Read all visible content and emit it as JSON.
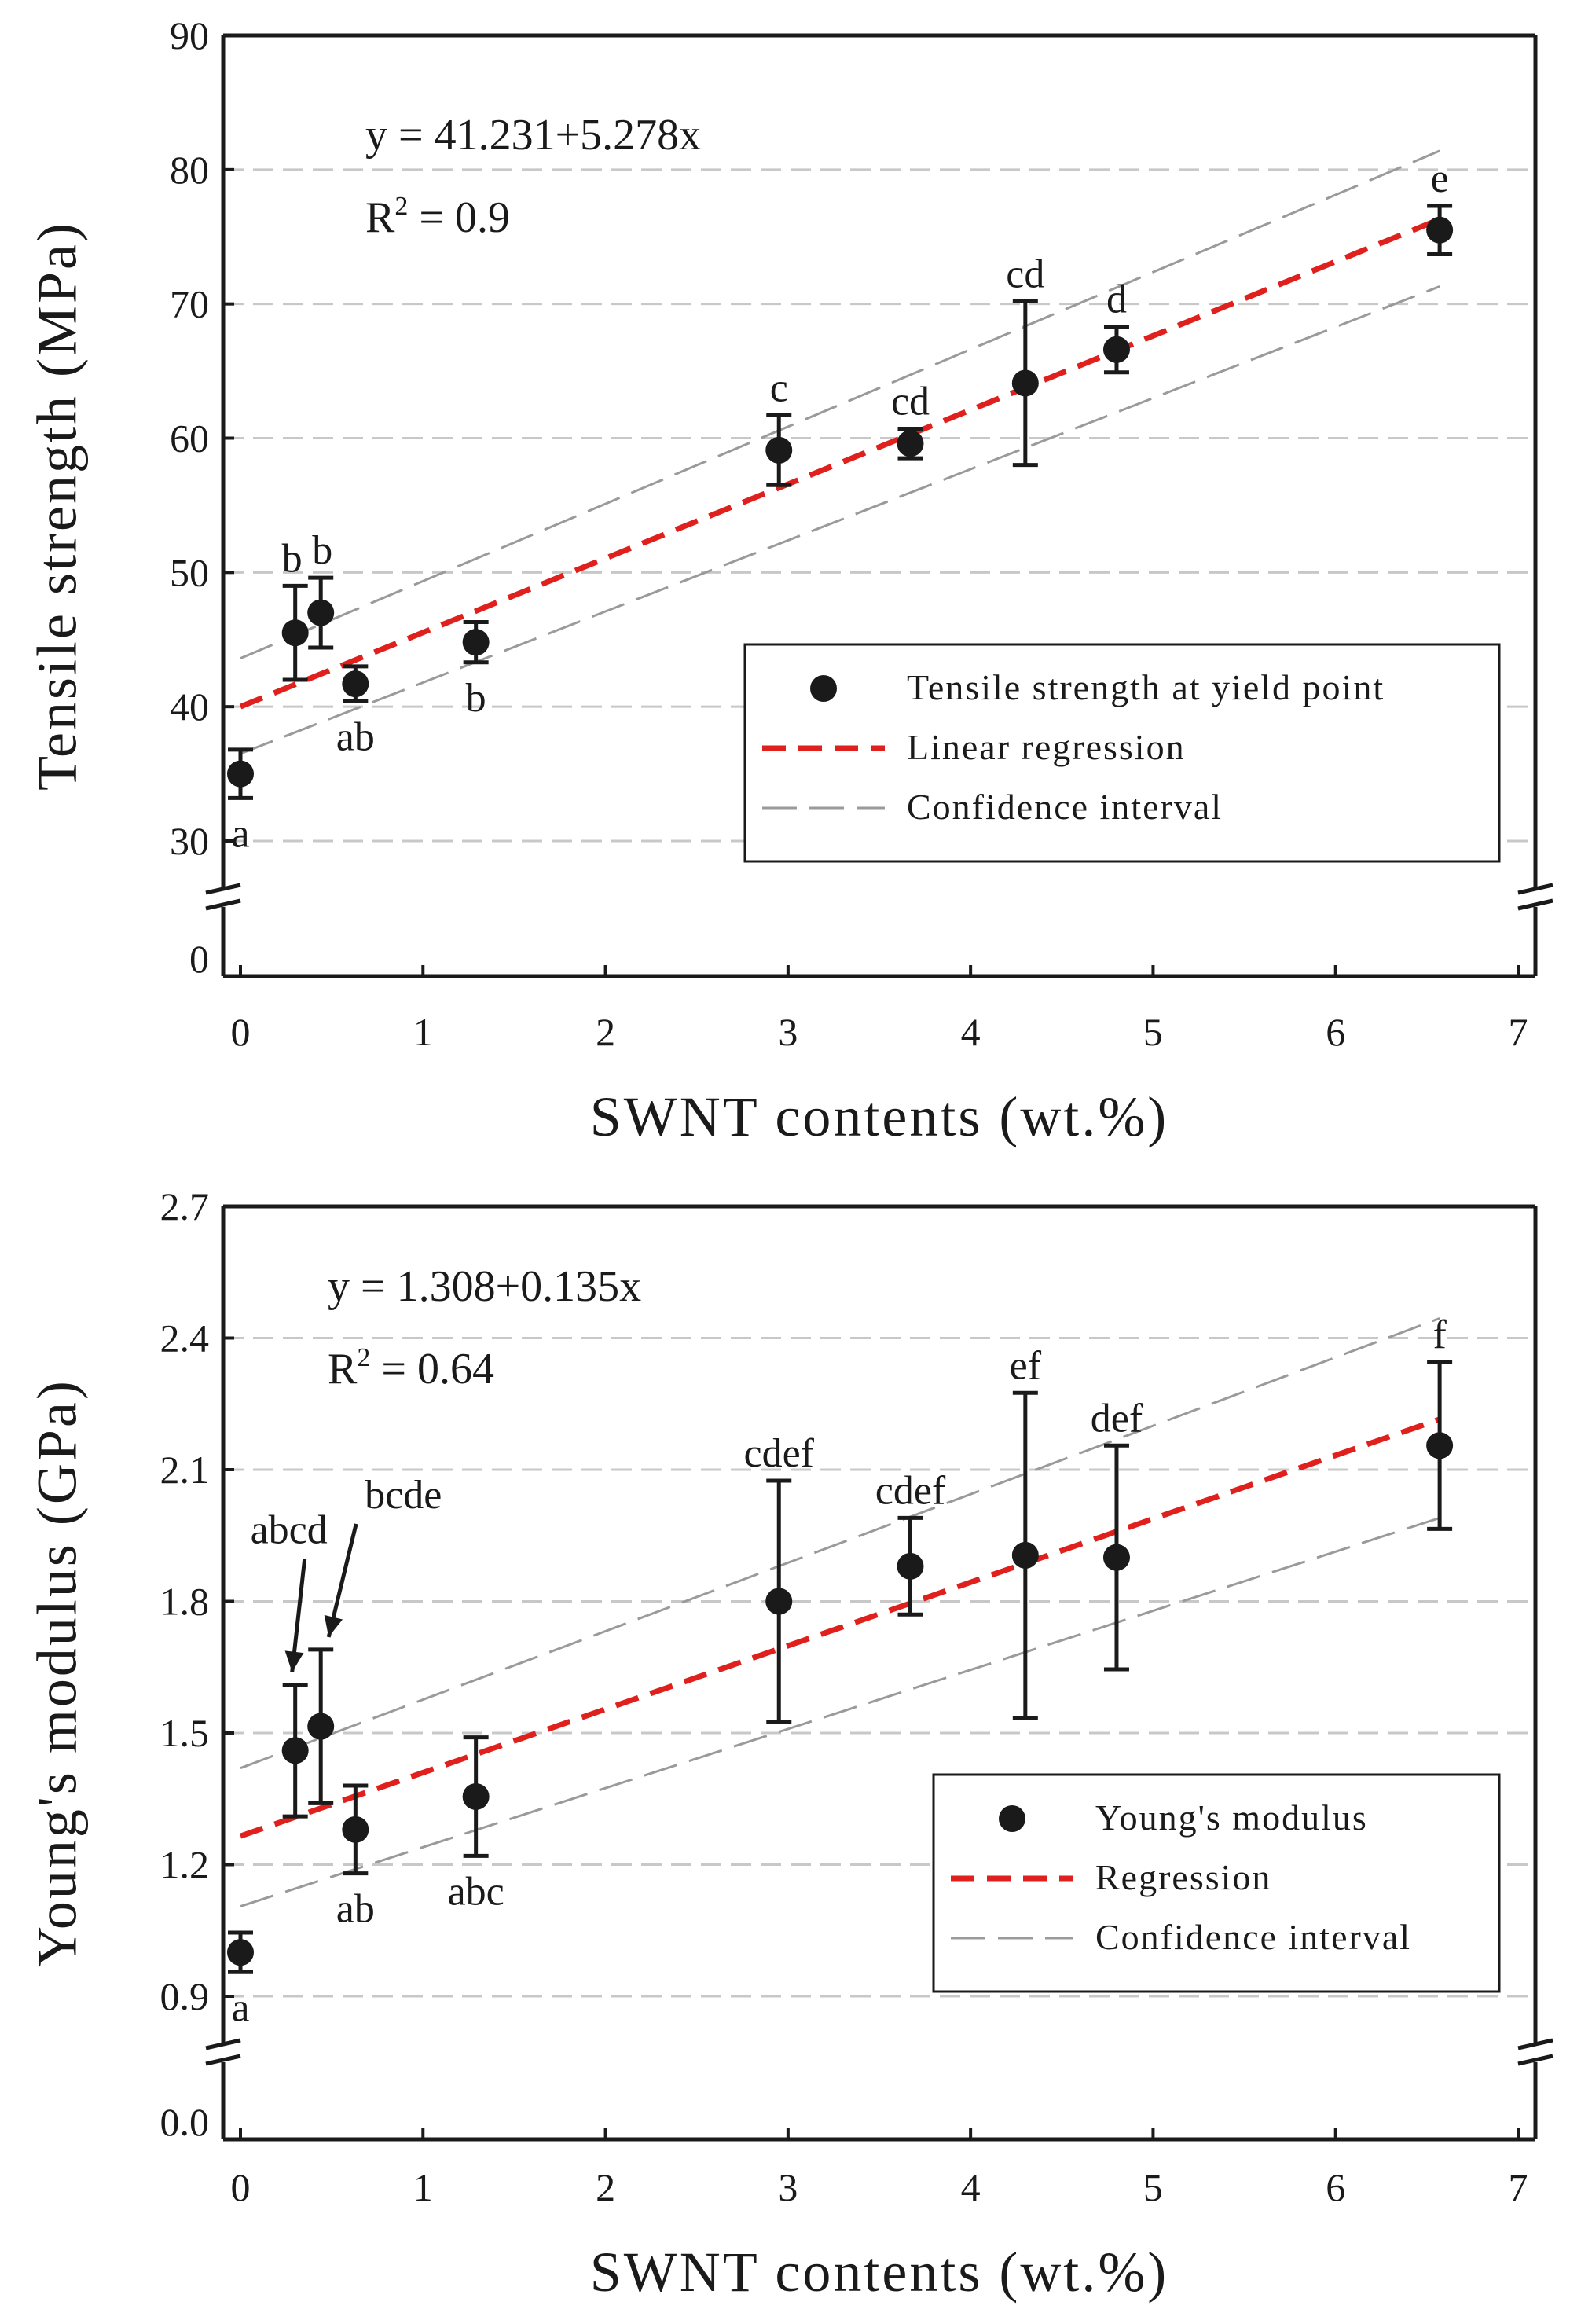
{
  "colors": {
    "axis": "#1a1a1a",
    "grid": "#c8c8c8",
    "marker": "#1a1a1a",
    "regression": "#e0201c",
    "confidence": "#9a9a9a"
  },
  "chart_data": [
    {
      "type": "scatter",
      "title": "",
      "xlabel": "SWNT contents (wt.%)",
      "ylabel": "Tensile strength (MPa)",
      "xlim": [
        0,
        7
      ],
      "x_ticks": [
        "0",
        "1",
        "2",
        "3",
        "4",
        "5",
        "6",
        "7"
      ],
      "y_broken_axis": true,
      "y_ticks_upper": [
        "30",
        "40",
        "50",
        "60",
        "70",
        "80",
        "90"
      ],
      "y_tick_lower": "0",
      "ylim_upper": [
        25,
        90
      ],
      "grid": "horizontal dashed",
      "equation": "y = 41.231+5.278x",
      "r_squared_label": "R",
      "r_squared_sup": "2",
      "r_squared_value": " = 0.9",
      "points": [
        {
          "x": 0.0,
          "y": 35.0,
          "err": 1.8,
          "label": "a",
          "label_pos": "below"
        },
        {
          "x": 0.3,
          "y": 45.5,
          "err": 3.5,
          "label": "b",
          "label_pos": "above"
        },
        {
          "x": 0.44,
          "y": 47.0,
          "err": 2.6,
          "label": "b",
          "label_pos": "above"
        },
        {
          "x": 0.63,
          "y": 41.7,
          "err": 1.3,
          "label": "ab",
          "label_pos": "below"
        },
        {
          "x": 1.29,
          "y": 44.8,
          "err": 1.5,
          "label": "b",
          "label_pos": "below"
        },
        {
          "x": 2.95,
          "y": 59.1,
          "err": 2.6,
          "label": "c",
          "label_pos": "above"
        },
        {
          "x": 3.67,
          "y": 59.6,
          "err": 1.1,
          "label": "cd",
          "label_pos": "above"
        },
        {
          "x": 4.3,
          "y": 64.1,
          "err": 6.1,
          "label": "cd",
          "label_pos": "above"
        },
        {
          "x": 4.8,
          "y": 66.6,
          "err": 1.7,
          "label": "d",
          "label_pos": "above"
        },
        {
          "x": 6.57,
          "y": 75.5,
          "err": 1.8,
          "label": "e",
          "label_pos": "above"
        }
      ],
      "regression": {
        "x": [
          0,
          6.57
        ],
        "y": [
          40.0,
          76.3
        ]
      },
      "ci_upper": {
        "x": [
          0,
          6.57
        ],
        "y": [
          43.6,
          81.4
        ]
      },
      "ci_lower": {
        "x": [
          0,
          6.57
        ],
        "y": [
          36.5,
          71.3
        ]
      },
      "legend": {
        "placement": "bottom-right",
        "items": [
          "Tensile strength at yield point",
          "Linear regression",
          "Confidence interval"
        ]
      }
    },
    {
      "type": "scatter",
      "title": "",
      "xlabel": "SWNT contents (wt.%)",
      "ylabel": "Young's modulus (GPa)",
      "xlim": [
        0,
        7
      ],
      "x_ticks": [
        "0",
        "1",
        "2",
        "3",
        "4",
        "5",
        "6",
        "7"
      ],
      "y_broken_axis": true,
      "y_ticks_upper": [
        "0.9",
        "1.2",
        "1.5",
        "1.8",
        "2.1",
        "2.4",
        "2.7"
      ],
      "y_tick_lower": "0.0",
      "ylim_upper": [
        0.75,
        2.7
      ],
      "grid": "horizontal dashed",
      "equation": "y = 1.308+0.135x",
      "r_squared_label": "R",
      "r_squared_sup": "2",
      "r_squared_value": " = 0.64",
      "points": [
        {
          "x": 0.0,
          "y": 1.0,
          "err": 0.045,
          "label": "a",
          "label_pos": "below"
        },
        {
          "x": 0.3,
          "y": 1.46,
          "err": 0.15,
          "label": "abcd",
          "label_pos": "arrow"
        },
        {
          "x": 0.44,
          "y": 1.515,
          "err": 0.175,
          "label": "bcde",
          "label_pos": "arrow"
        },
        {
          "x": 0.63,
          "y": 1.28,
          "err": 0.1,
          "label": "ab",
          "label_pos": "below"
        },
        {
          "x": 1.29,
          "y": 1.355,
          "err": 0.135,
          "label": "abc",
          "label_pos": "below"
        },
        {
          "x": 2.95,
          "y": 1.8,
          "err": 0.275,
          "label": "cdef",
          "label_pos": "above"
        },
        {
          "x": 3.67,
          "y": 1.88,
          "err": 0.11,
          "label": "cdef",
          "label_pos": "above"
        },
        {
          "x": 4.3,
          "y": 1.905,
          "err": 0.37,
          "label": "ef",
          "label_pos": "above"
        },
        {
          "x": 4.8,
          "y": 1.9,
          "err": 0.255,
          "label": "def",
          "label_pos": "above"
        },
        {
          "x": 6.57,
          "y": 2.155,
          "err": 0.19,
          "label": "f",
          "label_pos": "above"
        }
      ],
      "regression": {
        "x": [
          0,
          6.57
        ],
        "y": [
          1.265,
          2.215
        ]
      },
      "ci_upper": {
        "x": [
          0,
          6.57
        ],
        "y": [
          1.42,
          2.445
        ]
      },
      "ci_lower": {
        "x": [
          0,
          6.57
        ],
        "y": [
          1.105,
          1.99
        ]
      },
      "legend": {
        "placement": "bottom-right",
        "items": [
          "Young's modulus",
          "Regression",
          "Confidence interval"
        ]
      }
    }
  ]
}
